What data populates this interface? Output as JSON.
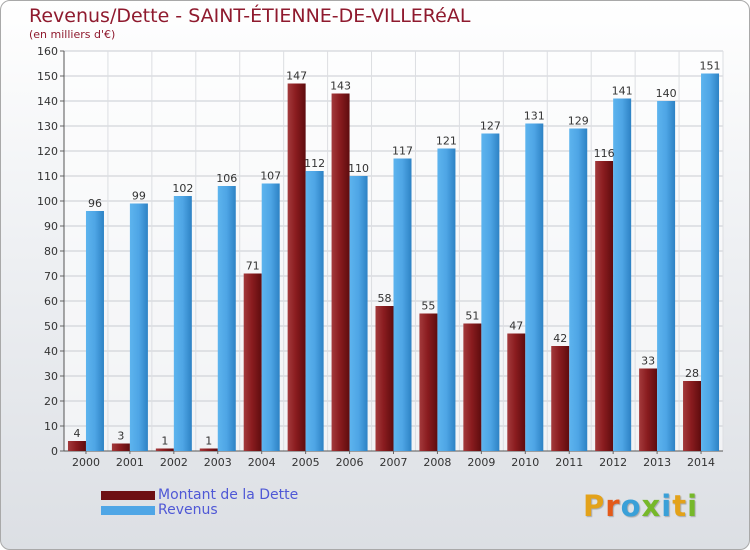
{
  "title": "Revenus/Dette - SAINT-ÉTIENNE-DE-VILLERéAL",
  "subtitle": "(en milliers d'€)",
  "legend": {
    "debt_label": "Montant de la Dette",
    "revenue_label": "Revenus"
  },
  "logo_text": "Proxiti",
  "colors": {
    "title": "#8f1a2e",
    "debt": "#7c1518",
    "revenue": "#4fa6e6",
    "legend_text": "#4f58d6"
  },
  "chart_data": {
    "type": "bar",
    "categories": [
      "2000",
      "2001",
      "2002",
      "2003",
      "2004",
      "2005",
      "2006",
      "2007",
      "2008",
      "2009",
      "2010",
      "2011",
      "2012",
      "2013",
      "2014"
    ],
    "series": [
      {
        "name": "Montant de la Dette",
        "values": [
          4,
          3,
          1,
          1,
          71,
          147,
          143,
          58,
          55,
          51,
          47,
          42,
          116,
          33,
          28
        ]
      },
      {
        "name": "Revenus",
        "values": [
          96,
          99,
          102,
          106,
          107,
          112,
          110,
          117,
          121,
          127,
          131,
          129,
          141,
          140,
          151
        ]
      }
    ],
    "ylim": [
      0,
      160
    ],
    "yticks": [
      0,
      10,
      20,
      30,
      40,
      50,
      60,
      70,
      80,
      90,
      100,
      110,
      120,
      130,
      140,
      150,
      160
    ],
    "grid": true
  }
}
